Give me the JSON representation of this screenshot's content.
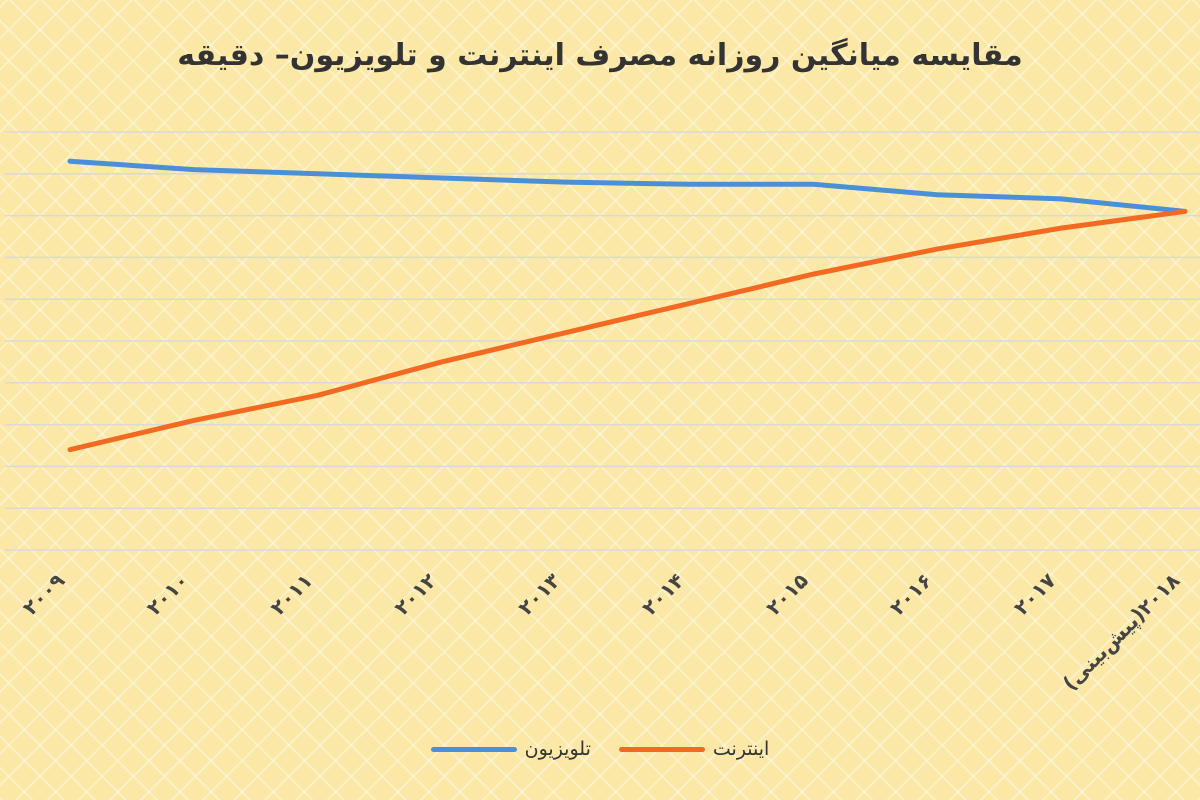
{
  "chart_data": {
    "type": "line",
    "title": "مقایسه میانگین روزانه مصرف اینترنت و تلویزیون– دقیقه",
    "categories": [
      "۲۰۰۹",
      "۲۰۱۰",
      "۲۰۱۱",
      "۲۰۱۲",
      "۲۰۱۳",
      "۲۰۱۴",
      "۲۰۱۵",
      "۲۰۱۶",
      "۲۰۱۷",
      "(پیش‌بینی)۲۰۱۸"
    ],
    "series": [
      {
        "name": "تلویزیون",
        "color": "#4a90d9",
        "values": [
          9.3,
          9.1,
          9.0,
          8.9,
          8.8,
          8.75,
          8.75,
          8.5,
          8.4,
          8.1
        ]
      },
      {
        "name": "اینترنت",
        "color": "#f26a21",
        "values": [
          2.4,
          3.1,
          3.7,
          4.5,
          5.2,
          5.9,
          6.6,
          7.2,
          7.7,
          8.1
        ]
      }
    ],
    "ylim": [
      0,
      10
    ],
    "grid": true,
    "legend_position": "bottom"
  }
}
